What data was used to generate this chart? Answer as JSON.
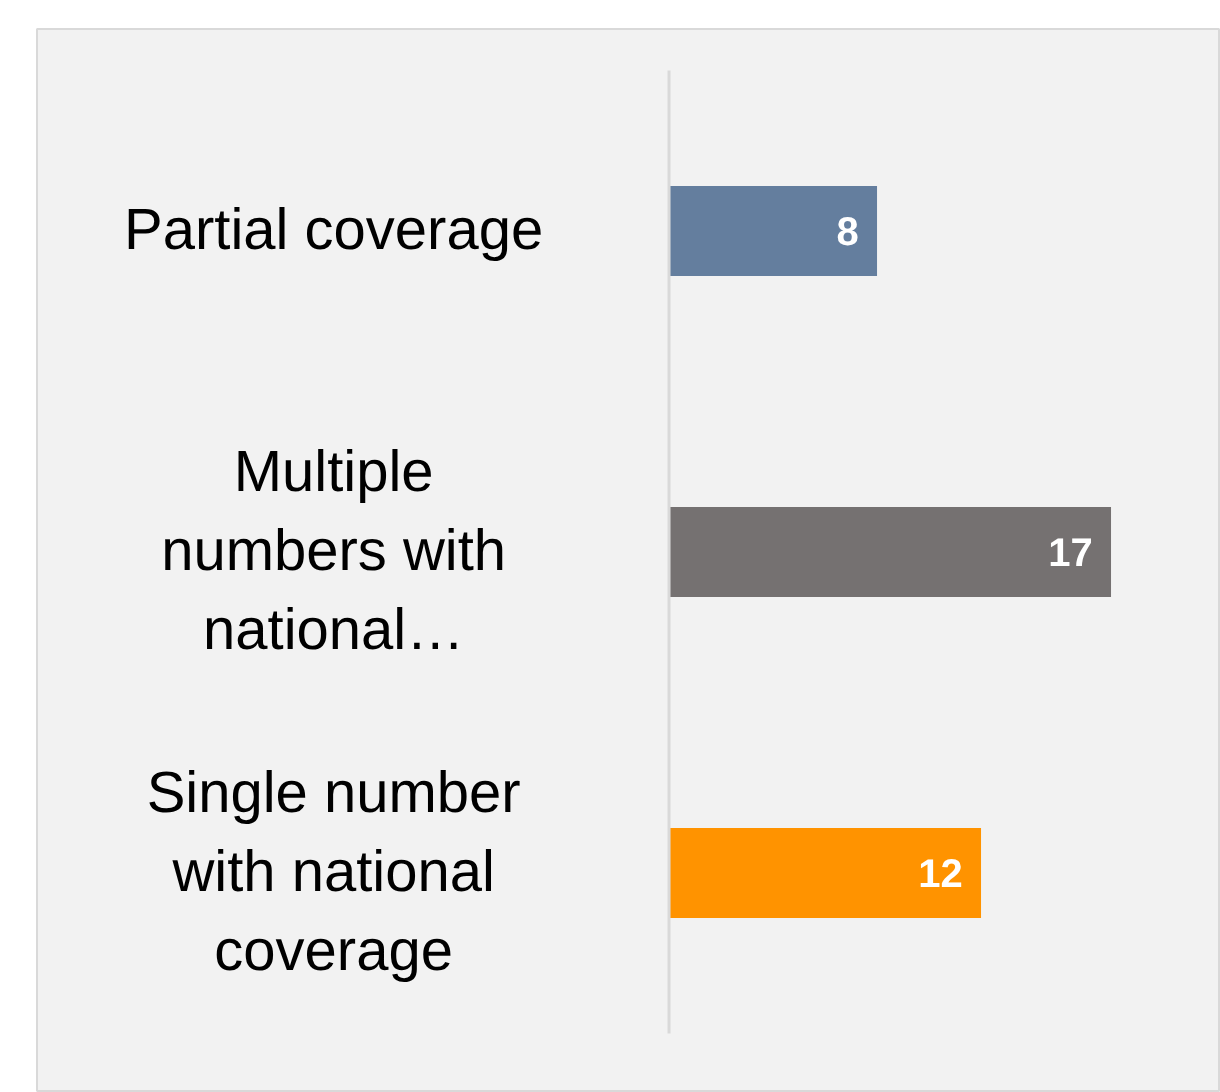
{
  "chart_data": {
    "type": "bar",
    "orientation": "horizontal",
    "categories": [
      "Partial coverage",
      "Multiple\nnumbers with\nnational…",
      "Single number\nwith national\ncoverage"
    ],
    "values": [
      8,
      17,
      12
    ],
    "colors": [
      "#647e9e",
      "#757171",
      "#ff9300"
    ],
    "data_labels": true
  }
}
